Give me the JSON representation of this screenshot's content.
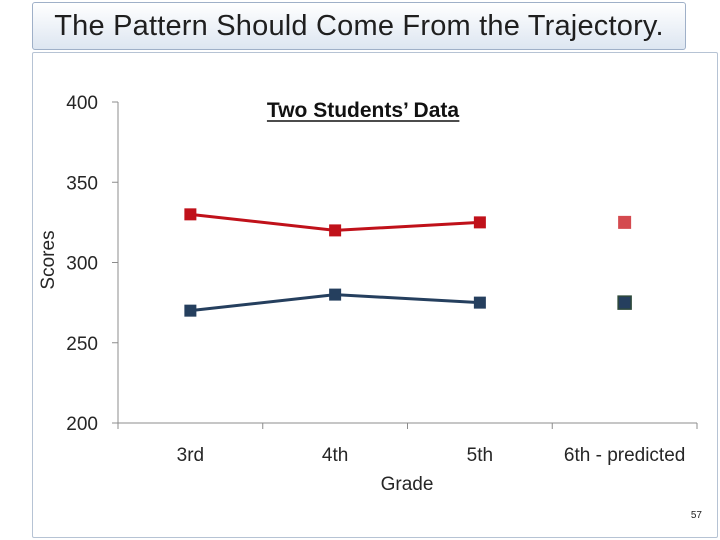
{
  "slide": {
    "heading": "The Pattern Should Come From the Trajectory.",
    "page_number": "57"
  },
  "colors": {
    "series_red": "#c0111a",
    "series_blue": "#253f5e",
    "predicted_red": "#d44a4f",
    "predicted_blue": "#2f4a3b",
    "axis": "#8c8c8c"
  },
  "chart_data": {
    "type": "line",
    "title": "Two Students’ Data",
    "xlabel": "Grade",
    "ylabel": "Scores",
    "categories": [
      "3rd",
      "4th",
      "5th",
      "6th - predicted"
    ],
    "ylim": [
      200,
      400
    ],
    "yticks": [
      200,
      250,
      300,
      350,
      400
    ],
    "series": [
      {
        "values": [
          330,
          320,
          325,
          null
        ],
        "predicted": 325,
        "color": "#c0111a"
      },
      {
        "values": [
          270,
          280,
          275,
          null
        ],
        "predicted": 275,
        "color": "#253f5e"
      }
    ],
    "grid": false,
    "legend": "none"
  }
}
